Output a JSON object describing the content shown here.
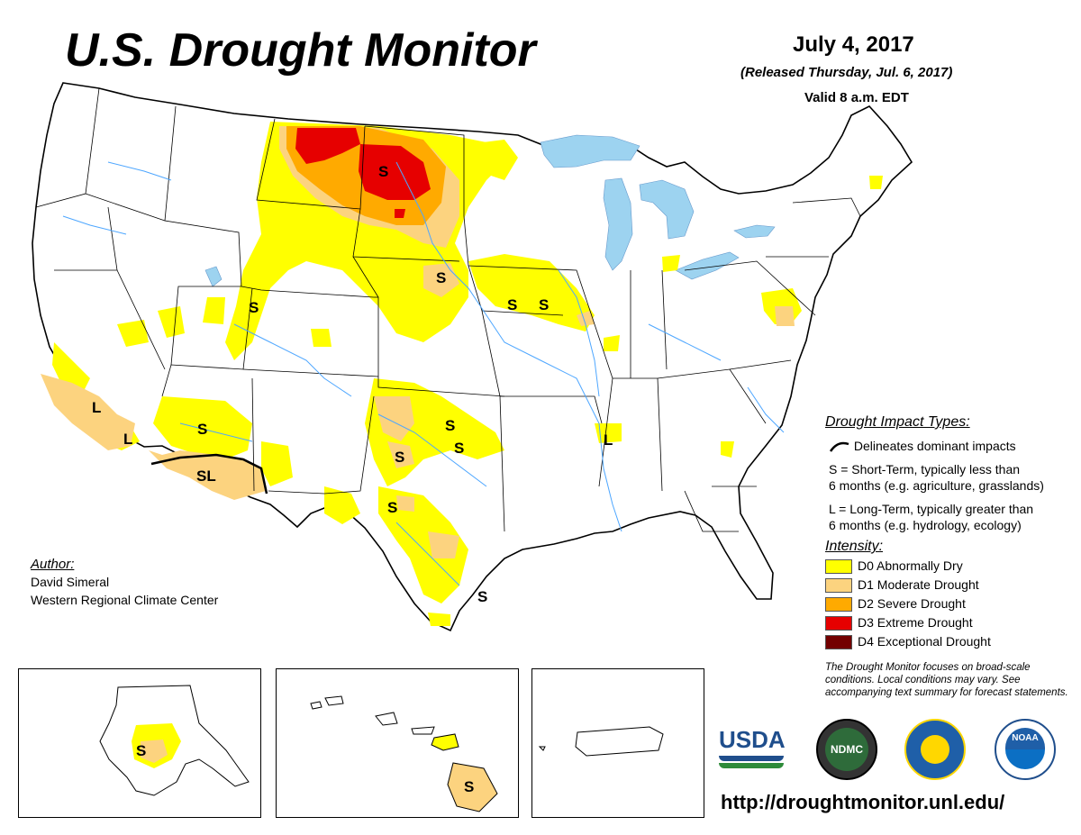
{
  "header": {
    "title": "U.S. Drought Monitor",
    "date": "July 4, 2017",
    "released": "(Released Thursday, Jul. 6, 2017)",
    "valid": "Valid 8 a.m. EDT"
  },
  "legend": {
    "impact_heading": "Drought Impact Types:",
    "delineates": "Delineates dominant impacts",
    "short_term_1": "S = Short-Term, typically less than",
    "short_term_2": "6 months (e.g. agriculture, grasslands)",
    "long_term_1": "L = Long-Term, typically greater than",
    "long_term_2": "6 months (e.g. hydrology, ecology)",
    "intensity_heading": "Intensity:",
    "intensity": [
      {
        "code": "D0",
        "label": "D0 Abnormally Dry",
        "color": "#FFFF00"
      },
      {
        "code": "D1",
        "label": "D1 Moderate Drought",
        "color": "#FCD37F"
      },
      {
        "code": "D2",
        "label": "D2 Severe Drought",
        "color": "#FFAA00"
      },
      {
        "code": "D3",
        "label": "D3 Extreme Drought",
        "color": "#E60000"
      },
      {
        "code": "D4",
        "label": "D4 Exceptional Drought",
        "color": "#730000"
      }
    ],
    "note": "The Drought Monitor focuses on broad-scale conditions. Local conditions may vary. See accompanying text summary for forecast statements."
  },
  "author": {
    "label": "Author:",
    "name": "David Simeral",
    "org": "Western Regional Climate Center"
  },
  "logos": {
    "usda": "USDA",
    "ndmc": "NDMC",
    "noaa": "NOAA"
  },
  "url": "http://droughtmonitor.unl.edu/",
  "impact_labels": {
    "s": "S",
    "l": "L",
    "sl": "SL"
  },
  "colors": {
    "water": "#9DD3F0",
    "river": "#4DA6FF",
    "border": "#000000"
  }
}
